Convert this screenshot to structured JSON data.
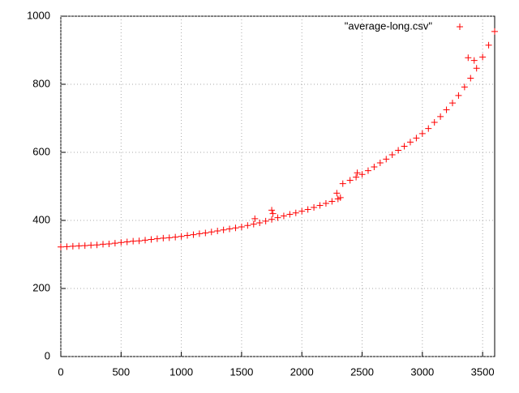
{
  "chart_data": {
    "type": "scatter",
    "legend": "top-right",
    "grid": true,
    "xlim": [
      0,
      3600
    ],
    "xticks": [
      0,
      500,
      1000,
      1500,
      2000,
      2500,
      3000,
      3500
    ],
    "ylim": [
      0,
      1000
    ],
    "yticks": [
      0,
      200,
      400,
      600,
      800,
      1000
    ],
    "series": [
      {
        "name": "\"average-long.csv\"",
        "color": "#ff0000",
        "x": [
          0,
          50,
          100,
          150,
          200,
          250,
          300,
          350,
          400,
          450,
          500,
          550,
          600,
          650,
          700,
          750,
          800,
          850,
          900,
          950,
          1000,
          1050,
          1100,
          1150,
          1200,
          1250,
          1300,
          1350,
          1400,
          1450,
          1500,
          1550,
          1600,
          1650,
          1700,
          1750,
          1800,
          1850,
          1900,
          1950,
          2000,
          2050,
          2100,
          2150,
          2200,
          2250,
          2300,
          2320,
          2340,
          2400,
          2450,
          2500,
          2550,
          2600,
          2650,
          2700,
          2750,
          2800,
          2850,
          2900,
          2950,
          3000,
          3050,
          3100,
          3150,
          3200,
          3250,
          3300,
          3350,
          3400,
          3450,
          3500,
          3550,
          3600,
          1610,
          1750,
          1760,
          2290,
          2460,
          3380,
          3430
        ],
        "values": [
          322,
          323,
          324,
          325,
          326,
          327,
          328,
          330,
          331,
          333,
          335,
          337,
          339,
          340,
          342,
          344,
          346,
          348,
          349,
          351,
          353,
          356,
          358,
          361,
          363,
          366,
          369,
          372,
          375,
          378,
          381,
          385,
          389,
          393,
          398,
          403,
          408,
          413,
          418,
          422,
          427,
          432,
          438,
          444,
          450,
          456,
          463,
          467,
          508,
          518,
          527,
          535,
          546,
          557,
          569,
          580,
          593,
          606,
          618,
          630,
          642,
          655,
          670,
          688,
          705,
          725,
          745,
          767,
          792,
          818,
          847,
          880,
          915,
          955,
          405,
          430,
          420,
          480,
          540,
          878,
          870
        ]
      }
    ]
  }
}
